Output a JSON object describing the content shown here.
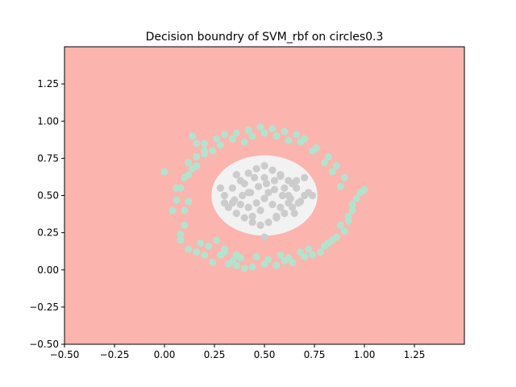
{
  "chart_data": {
    "type": "scatter",
    "title": "Decision boundry of SVM_rbf on circles0.3",
    "xlabel": "",
    "ylabel": "",
    "xlim": [
      -0.5,
      1.5
    ],
    "ylim": [
      -0.5,
      1.5
    ],
    "xticks": [
      "−0.50",
      "−0.25",
      "0.00",
      "0.25",
      "0.50",
      "0.75",
      "1.00",
      "1.25"
    ],
    "yticks": [
      "−0.50",
      "−0.25",
      "0.00",
      "0.25",
      "0.50",
      "0.75",
      "1.00",
      "1.25"
    ],
    "grid": false,
    "background_region": {
      "color": "#fbb4ae"
    },
    "decision_region": {
      "color": "#f2f2f2",
      "shape": "ellipse",
      "center": [
        0.5,
        0.5
      ],
      "radius_x": 0.265,
      "radius_y": 0.27
    },
    "series": [
      {
        "color": "#b3e2cd",
        "ring": {
          "center": [
            0.5,
            0.5
          ],
          "radius": 0.4,
          "spread": 0.055
        },
        "x": [
          0.0,
          0.04,
          0.06,
          0.1,
          0.12,
          0.16,
          0.2,
          0.14,
          0.08,
          0.1,
          0.08,
          0.12,
          0.16,
          0.2,
          0.24,
          0.28,
          0.32,
          0.36,
          0.4,
          0.44,
          0.5,
          0.56,
          0.6,
          0.64,
          0.7,
          0.74,
          0.78,
          0.82,
          0.86,
          0.88,
          0.92,
          0.94,
          0.98,
          1.0,
          0.9,
          0.86,
          0.82,
          0.76,
          0.7,
          0.66,
          0.6,
          0.54,
          0.48,
          0.42,
          0.36,
          0.3,
          0.26,
          0.2,
          0.16,
          0.14,
          0.12,
          0.1,
          0.06,
          0.08,
          0.18,
          0.22,
          0.3,
          0.34,
          0.38,
          0.46,
          0.52,
          0.58,
          0.62,
          0.68,
          0.72,
          0.8,
          0.84,
          0.9,
          0.92,
          0.94,
          0.96,
          0.88,
          0.84,
          0.8,
          0.74,
          0.68,
          0.62,
          0.56,
          0.5,
          0.44,
          0.4,
          0.34,
          0.28,
          0.24,
          0.2,
          0.16,
          0.12,
          0.26,
          0.3,
          0.36
        ],
        "y": [
          0.66,
          0.4,
          0.47,
          0.62,
          0.72,
          0.85,
          0.8,
          0.9,
          0.55,
          0.3,
          0.2,
          0.14,
          0.12,
          0.1,
          0.05,
          0.1,
          0.04,
          0.03,
          0.01,
          0.02,
          0.04,
          0.03,
          0.06,
          0.05,
          0.09,
          0.1,
          0.12,
          0.18,
          0.22,
          0.3,
          0.36,
          0.44,
          0.52,
          0.54,
          0.62,
          0.7,
          0.76,
          0.82,
          0.88,
          0.91,
          0.93,
          0.95,
          0.96,
          0.94,
          0.92,
          0.91,
          0.88,
          0.85,
          0.76,
          0.68,
          0.46,
          0.4,
          0.55,
          0.24,
          0.18,
          0.16,
          0.12,
          0.06,
          0.08,
          0.09,
          0.07,
          0.1,
          0.08,
          0.12,
          0.14,
          0.16,
          0.2,
          0.26,
          0.33,
          0.4,
          0.48,
          0.56,
          0.66,
          0.72,
          0.8,
          0.86,
          0.87,
          0.9,
          0.92,
          0.9,
          0.86,
          0.88,
          0.84,
          0.8,
          0.78,
          0.7,
          0.64,
          0.2,
          0.14,
          0.1
        ]
      },
      {
        "color": "#cccccc",
        "cluster": {
          "center": [
            0.5,
            0.5
          ],
          "radius": 0.25
        },
        "x": [
          0.3,
          0.34,
          0.38,
          0.42,
          0.46,
          0.5,
          0.54,
          0.58,
          0.62,
          0.66,
          0.7,
          0.32,
          0.36,
          0.4,
          0.44,
          0.48,
          0.52,
          0.56,
          0.6,
          0.64,
          0.68,
          0.72,
          0.35,
          0.39,
          0.43,
          0.47,
          0.51,
          0.55,
          0.59,
          0.63,
          0.67,
          0.28,
          0.3,
          0.34,
          0.38,
          0.42,
          0.46,
          0.5,
          0.54,
          0.58,
          0.62,
          0.66,
          0.7,
          0.74,
          0.4,
          0.45,
          0.5,
          0.55,
          0.6,
          0.65,
          0.42,
          0.48,
          0.52,
          0.58,
          0.62,
          0.36,
          0.44,
          0.56,
          0.64,
          0.5
        ],
        "y": [
          0.5,
          0.55,
          0.6,
          0.65,
          0.68,
          0.7,
          0.67,
          0.63,
          0.6,
          0.55,
          0.5,
          0.42,
          0.38,
          0.35,
          0.32,
          0.3,
          0.32,
          0.35,
          0.38,
          0.42,
          0.46,
          0.52,
          0.47,
          0.5,
          0.52,
          0.56,
          0.58,
          0.54,
          0.5,
          0.48,
          0.45,
          0.55,
          0.45,
          0.45,
          0.44,
          0.42,
          0.45,
          0.48,
          0.44,
          0.42,
          0.45,
          0.6,
          0.62,
          0.5,
          0.58,
          0.62,
          0.62,
          0.6,
          0.55,
          0.38,
          0.52,
          0.4,
          0.52,
          0.64,
          0.5,
          0.64,
          0.36,
          0.36,
          0.58,
          0.22
        ]
      }
    ]
  }
}
